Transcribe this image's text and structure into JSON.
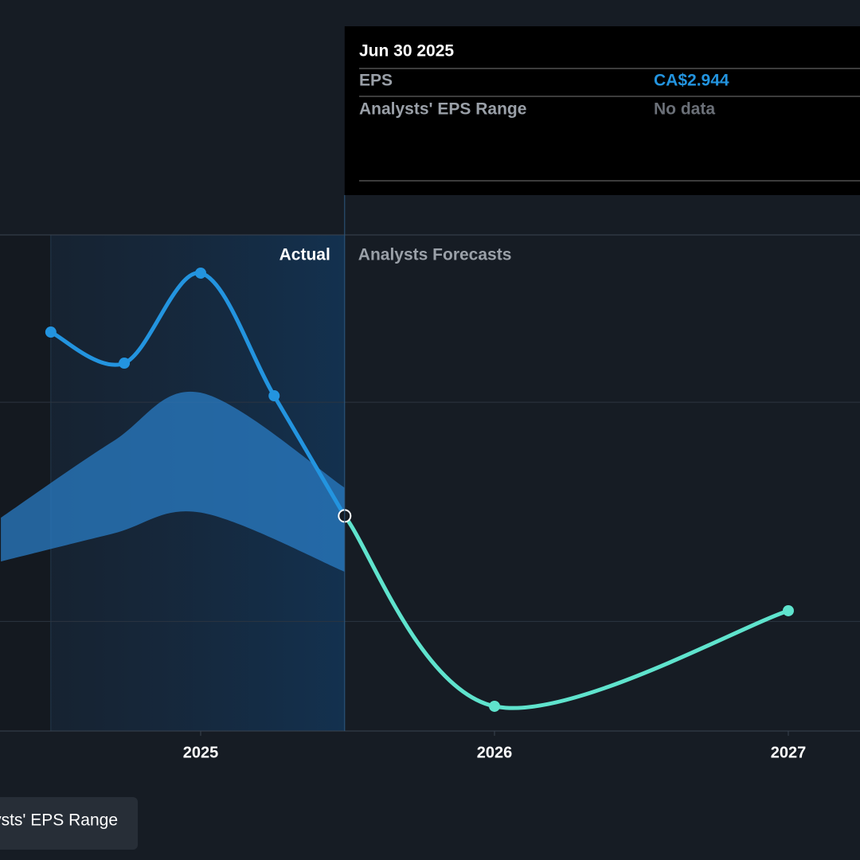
{
  "chart_data": {
    "type": "line",
    "x": [
      2024.49,
      2024.74,
      2025.0,
      2025.25,
      2025.49
    ],
    "series": [
      {
        "name": "Actual",
        "color": "#2394df",
        "x": [
          2024.49,
          2024.74,
          2025.0,
          2025.25,
          2025.49
        ],
        "values": [
          5.46,
          5.035,
          6.267,
          4.588,
          2.944
        ]
      },
      {
        "name": "Analysts Forecasts",
        "color": "#5fe3cd",
        "x": [
          2025.49,
          2026.0,
          2027.0
        ],
        "values": [
          2.944,
          0.338,
          1.646
        ]
      }
    ],
    "range": {
      "name": "Analysts' EPS Range",
      "color": "#2a7cc4",
      "x": [
        2024.32,
        2024.7,
        2025.0,
        2025.49
      ],
      "low": [
        2.32,
        2.7,
        2.99,
        2.18
      ],
      "high": [
        2.92,
        3.96,
        4.63,
        3.33
      ]
    },
    "xlim": [
      2024.317,
      2027.244
    ],
    "xticks": [
      2025,
      2026,
      2027
    ],
    "ylim": [
      0,
      6.79
    ],
    "grid_values": [
      1.5,
      4.5
    ],
    "grid": true,
    "tooltip": {
      "date": "Jun 30 2025",
      "rows": [
        [
          "EPS",
          "CA$2.944"
        ],
        [
          "Analysts' EPS Range",
          "No data"
        ]
      ]
    }
  }
}
